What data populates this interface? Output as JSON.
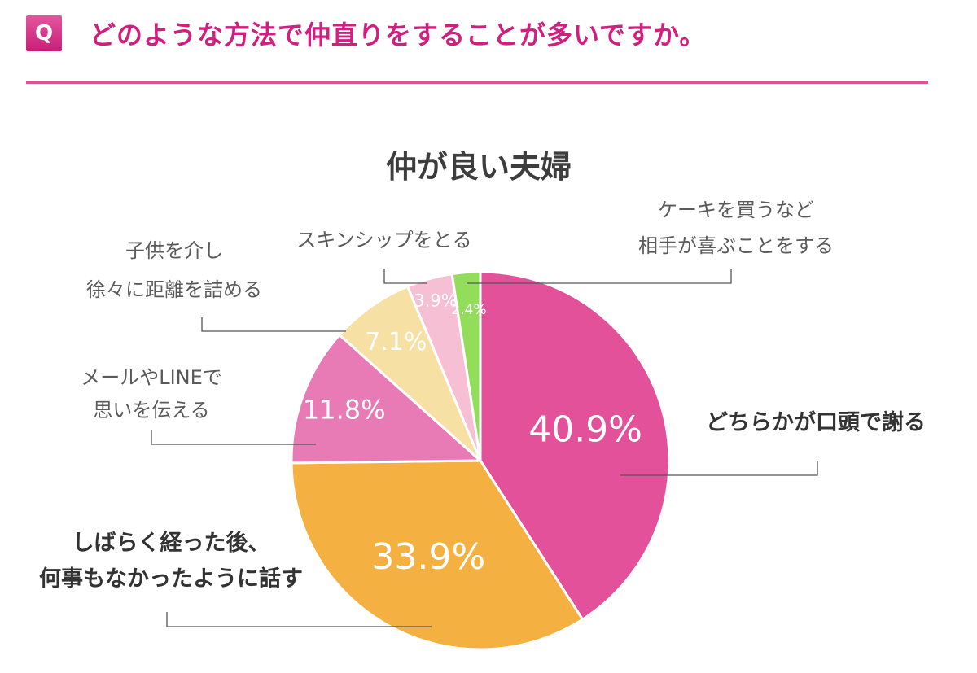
{
  "header": {
    "badge": "Q",
    "question": "どのような方法で仲直りをすることが多いですか。"
  },
  "colors": {
    "accent": "#d01f7f",
    "rule": "#e54e9a"
  },
  "chart_data": {
    "type": "pie",
    "title": "仲が良い夫婦",
    "slices": [
      {
        "label_lines": [
          "どちらかが口頭で謝る"
        ],
        "value": 40.9,
        "value_label": "40.9%",
        "color": "#e3519b"
      },
      {
        "label_lines": [
          "しばらく経った後、",
          "何事もなかったように話す"
        ],
        "value": 33.9,
        "value_label": "33.9%",
        "color": "#f4b040"
      },
      {
        "label_lines": [
          "メールやLINEで",
          "思いを伝える"
        ],
        "value": 11.8,
        "value_label": "11.8%",
        "color": "#e87ab6"
      },
      {
        "label_lines": [
          "子供を介し",
          "徐々に距離を詰める"
        ],
        "value": 7.1,
        "value_label": "7.1%",
        "color": "#f6e0a3"
      },
      {
        "label_lines": [
          "スキンシップをとる"
        ],
        "value": 3.9,
        "value_label": "3.9%",
        "color": "#f7bfd3"
      },
      {
        "label_lines": [
          "ケーキを買うなど",
          "相手が喜ぶことをする"
        ],
        "value": 2.4,
        "value_label": "2.4%",
        "color": "#92dd5a"
      }
    ]
  }
}
